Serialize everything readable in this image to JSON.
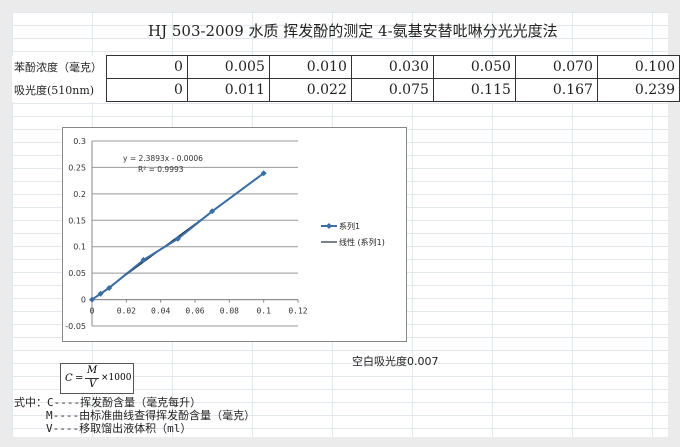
{
  "title": "HJ 503-2009 水质 挥发酚的测定 4-氨基安替吡啉分光光度法",
  "table": {
    "rows": [
      {
        "label": "苯酚浓度（毫克）",
        "values": [
          "0",
          "0.005",
          "0.010",
          "0.030",
          "0.050",
          "0.070",
          "0.100"
        ]
      },
      {
        "label": "吸光度(510nm)",
        "values": [
          "0",
          "0.011",
          "0.022",
          "0.075",
          "0.115",
          "0.167",
          "0.239"
        ]
      }
    ]
  },
  "chart_data": {
    "type": "scatter",
    "x": [
      0,
      0.005,
      0.01,
      0.03,
      0.05,
      0.07,
      0.1
    ],
    "series": [
      {
        "name": "系列1",
        "values": [
          0,
          0.011,
          0.022,
          0.075,
          0.115,
          0.167,
          0.239
        ],
        "color": "#3a6ea5"
      }
    ],
    "trendline": {
      "name": "线性 (系列1)",
      "equation": "y = 2.3893x - 0.0006",
      "r2": "R² = 0.9993",
      "slope": 2.3893,
      "intercept": -0.0006,
      "color": "#1f2f3f"
    },
    "xlim": [
      0,
      0.12
    ],
    "ylim": [
      -0.05,
      0.3
    ],
    "xticks": [
      "0",
      "0.02",
      "0.04",
      "0.06",
      "0.08",
      "0.1",
      "0.12"
    ],
    "yticks": [
      "-0.05",
      "0",
      "0.05",
      "0.1",
      "0.15",
      "0.2",
      "0.25",
      "0.3"
    ],
    "grid": "horizontal",
    "legend": "right"
  },
  "blank": "空白吸光度0.007",
  "formula": {
    "c": "C",
    "eq": "=",
    "m": "M",
    "v": "V",
    "mult": "×1000"
  },
  "notes": [
    "式中：C----挥发酚含量（毫克每升）",
    "M----由标准曲线查得挥发酚含量（毫克）",
    "V----移取馏出液体积（ml）"
  ]
}
